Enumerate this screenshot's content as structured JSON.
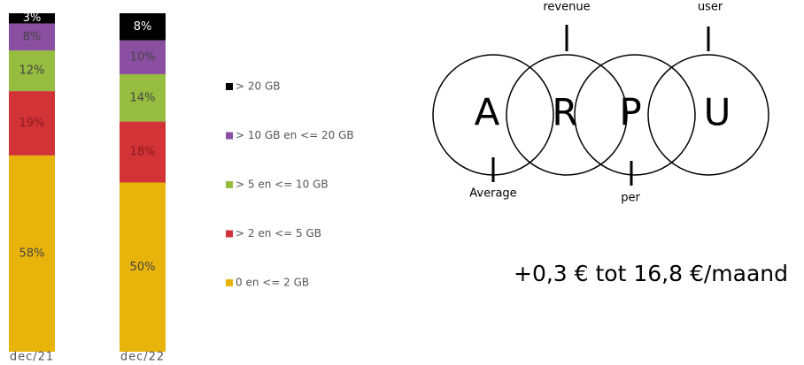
{
  "chart_data": {
    "type": "stacked_bar",
    "categories": [
      "dec/21",
      "dec/22"
    ],
    "ylim": [
      0,
      100
    ],
    "series": [
      {
        "name": "0 en <= 2 GB",
        "color": "#e8b40c",
        "values": [
          58,
          50
        ],
        "value_labels": [
          "58%",
          "50%"
        ]
      },
      {
        "name": "> 2  en <= 5 GB",
        "color": "#d13336",
        "values": [
          19,
          18
        ],
        "value_labels": [
          "19%",
          "18%"
        ]
      },
      {
        "name": "> 5 en <= 10 GB",
        "color": "#96bd3f",
        "values": [
          12,
          14
        ],
        "value_labels": [
          "12%",
          "14%"
        ]
      },
      {
        "name": "> 10 GB en <= 20 GB",
        "color": "#8a4fa0",
        "values": [
          8,
          10
        ],
        "value_labels": [
          "8%",
          "10%"
        ]
      },
      {
        "name": "> 20 GB",
        "color": "#000000",
        "values": [
          3,
          8
        ],
        "value_labels": [
          "3%",
          "8%"
        ]
      }
    ]
  },
  "diagram": {
    "letters": [
      "A",
      "R",
      "P",
      "U"
    ],
    "words": [
      "Average",
      "revenue",
      "per",
      "user"
    ],
    "note": "+0,3 € tot 16,8 €/maand"
  }
}
